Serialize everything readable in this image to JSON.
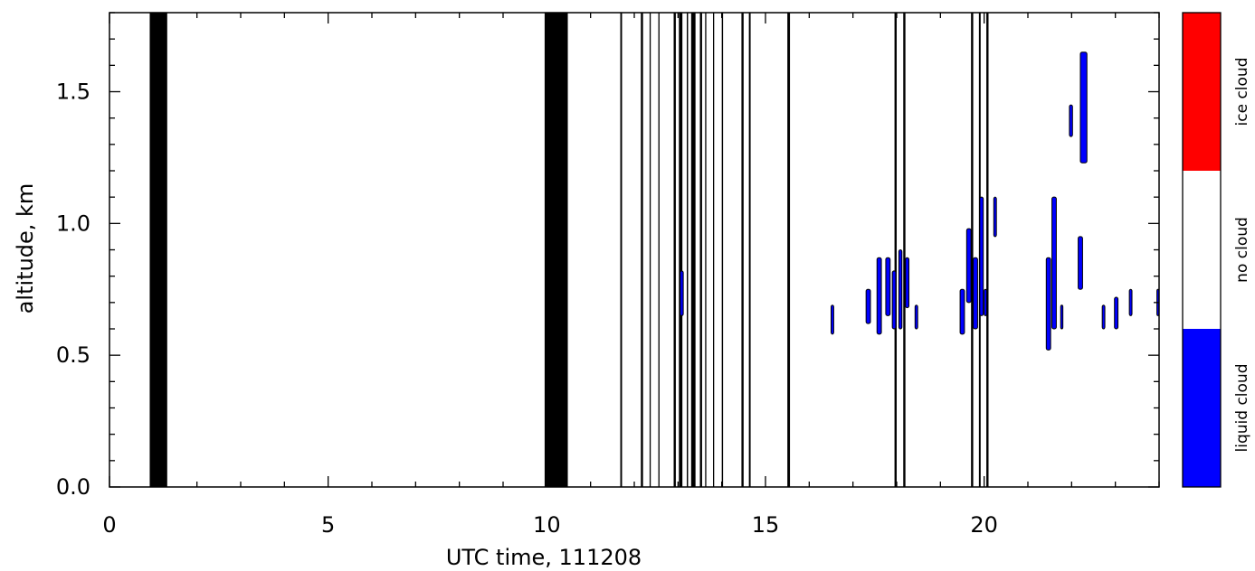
{
  "chart_data": {
    "type": "heatmap",
    "title": "",
    "xlabel": "UTC time, 111208",
    "ylabel": "altitude, km",
    "xlim": [
      0,
      24
    ],
    "ylim": [
      0,
      1.8
    ],
    "x_ticks": [
      0,
      5,
      10,
      15,
      20
    ],
    "x_tick_labels": [
      "0",
      "5",
      "10",
      "15",
      "20"
    ],
    "y_ticks": [
      0.0,
      0.5,
      1.0,
      1.5
    ],
    "y_tick_labels": [
      "0.0",
      "0.5",
      "1.0",
      "1.5"
    ],
    "colorbar": {
      "categories": [
        "liquid cloud",
        "no cloud",
        "ice cloud"
      ],
      "colors": [
        "#0000ff",
        "#ffffff",
        "#ff0000"
      ]
    },
    "missing_data_periods": [
      [
        0.92,
        1.32
      ],
      [
        9.95,
        10.48
      ],
      [
        11.68,
        11.72
      ],
      [
        12.15,
        12.2
      ],
      [
        12.35,
        12.37
      ],
      [
        12.55,
        12.57
      ],
      [
        12.9,
        12.95
      ],
      [
        13.02,
        13.1
      ],
      [
        13.2,
        13.23
      ],
      [
        13.3,
        13.4
      ],
      [
        13.5,
        13.55
      ],
      [
        13.62,
        13.64
      ],
      [
        13.8,
        13.82
      ],
      [
        14.0,
        14.03
      ],
      [
        14.45,
        14.5
      ],
      [
        14.62,
        14.66
      ],
      [
        15.5,
        15.56
      ],
      [
        17.95,
        18.0
      ],
      [
        18.15,
        18.2
      ],
      [
        19.7,
        19.75
      ],
      [
        19.88,
        19.92
      ],
      [
        20.05,
        20.1
      ]
    ],
    "liquid_cloud_patches": [
      {
        "x": [
          13.05,
          13.12
        ],
        "y": [
          0.65,
          0.82
        ]
      },
      {
        "x": [
          16.5,
          16.56
        ],
        "y": [
          0.58,
          0.69
        ]
      },
      {
        "x": [
          17.3,
          17.4
        ],
        "y": [
          0.62,
          0.75
        ]
      },
      {
        "x": [
          17.55,
          17.65
        ],
        "y": [
          0.58,
          0.87
        ]
      },
      {
        "x": [
          17.75,
          17.85
        ],
        "y": [
          0.65,
          0.87
        ]
      },
      {
        "x": [
          17.9,
          17.98
        ],
        "y": [
          0.6,
          0.82
        ]
      },
      {
        "x": [
          18.05,
          18.12
        ],
        "y": [
          0.6,
          0.9
        ]
      },
      {
        "x": [
          18.2,
          18.28
        ],
        "y": [
          0.68,
          0.87
        ]
      },
      {
        "x": [
          18.42,
          18.48
        ],
        "y": [
          0.6,
          0.69
        ]
      },
      {
        "x": [
          19.45,
          19.55
        ],
        "y": [
          0.58,
          0.75
        ]
      },
      {
        "x": [
          19.6,
          19.7
        ],
        "y": [
          0.7,
          0.98
        ]
      },
      {
        "x": [
          19.75,
          19.85
        ],
        "y": [
          0.6,
          0.87
        ]
      },
      {
        "x": [
          19.9,
          19.98
        ],
        "y": [
          0.65,
          1.1
        ]
      },
      {
        "x": [
          20.0,
          20.06
        ],
        "y": [
          0.65,
          0.75
        ]
      },
      {
        "x": [
          20.22,
          20.28
        ],
        "y": [
          0.95,
          1.1
        ]
      },
      {
        "x": [
          21.42,
          21.52
        ],
        "y": [
          0.52,
          0.87
        ]
      },
      {
        "x": [
          21.55,
          21.65
        ],
        "y": [
          0.6,
          1.1
        ]
      },
      {
        "x": [
          21.75,
          21.8
        ],
        "y": [
          0.6,
          0.69
        ]
      },
      {
        "x": [
          21.95,
          22.02
        ],
        "y": [
          1.33,
          1.45
        ]
      },
      {
        "x": [
          22.15,
          22.25
        ],
        "y": [
          0.75,
          0.95
        ]
      },
      {
        "x": [
          22.2,
          22.35
        ],
        "y": [
          1.23,
          1.65
        ]
      },
      {
        "x": [
          22.7,
          22.76
        ],
        "y": [
          0.6,
          0.69
        ]
      },
      {
        "x": [
          22.98,
          23.06
        ],
        "y": [
          0.6,
          0.72
        ]
      },
      {
        "x": [
          23.32,
          23.38
        ],
        "y": [
          0.65,
          0.75
        ]
      },
      {
        "x": [
          23.95,
          24.0
        ],
        "y": [
          0.65,
          0.75
        ]
      }
    ]
  }
}
